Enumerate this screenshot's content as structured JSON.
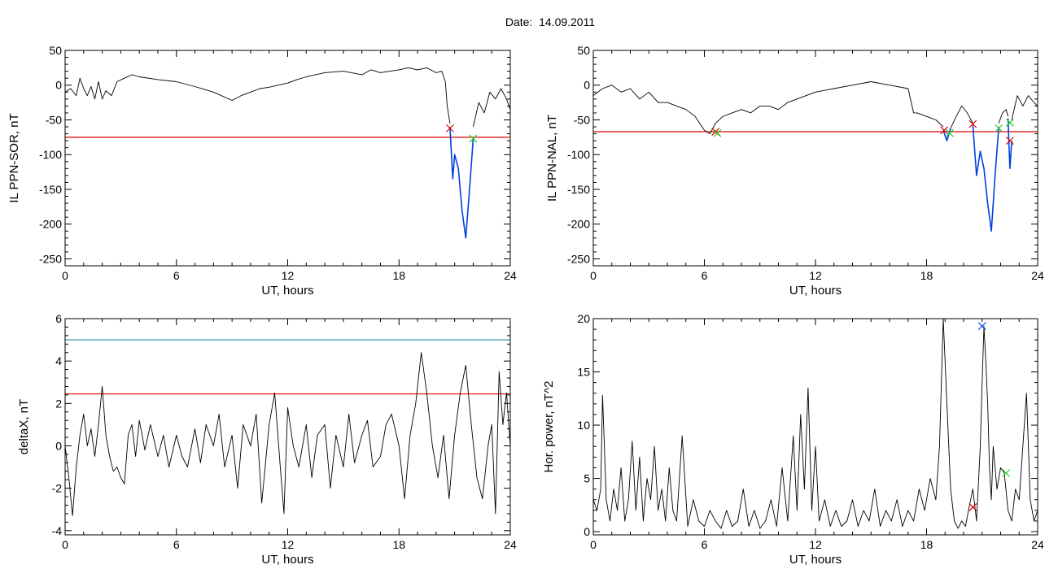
{
  "figure_title": "Date:  14.09.2011",
  "chart_data": [
    {
      "type": "line",
      "xlabel": "UT, hours",
      "ylabel": "IL PPN-SOR, nT",
      "xlim": [
        0,
        24
      ],
      "ylim": [
        -260,
        50
      ],
      "xticks": [
        0,
        6,
        12,
        18,
        24
      ],
      "yticks": [
        50,
        0,
        -50,
        -100,
        -150,
        -200,
        -250
      ],
      "grid": false,
      "threshold_lines": [
        {
          "y": -75,
          "color": "#e00000"
        }
      ],
      "series": [
        {
          "color": "#000000",
          "x": [
            0,
            0.3,
            0.6,
            0.8,
            1.0,
            1.2,
            1.4,
            1.6,
            1.8,
            2.0,
            2.2,
            2.5,
            2.8,
            3.2,
            3.6,
            4,
            5,
            6,
            7,
            8,
            9,
            9.5,
            10,
            10.5,
            11,
            11.5,
            12,
            12.5,
            13,
            14,
            15,
            16,
            16.5,
            17,
            17.5,
            18,
            18.5,
            19,
            19.5,
            20,
            20.3,
            20.5,
            20.6,
            20.75
          ],
          "y": [
            -10,
            -5,
            -15,
            10,
            -5,
            -15,
            -2,
            -20,
            5,
            -20,
            -8,
            -15,
            5,
            10,
            15,
            12,
            8,
            5,
            -2,
            -10,
            -22,
            -15,
            -10,
            -5,
            -3,
            0,
            3,
            8,
            12,
            18,
            20,
            15,
            22,
            18,
            20,
            22,
            25,
            22,
            25,
            18,
            20,
            5,
            -30,
            -55
          ]
        },
        {
          "color": "#0040e0",
          "x": [
            20.75,
            20.9,
            21.0,
            21.2,
            21.4,
            21.6,
            21.8,
            22.0
          ],
          "y": [
            -60,
            -135,
            -100,
            -120,
            -180,
            -220,
            -150,
            -78
          ]
        },
        {
          "color": "#000000",
          "x": [
            22.0,
            22.3,
            22.6,
            22.9,
            23.2,
            23.5,
            23.8,
            24
          ],
          "y": [
            -60,
            -25,
            -40,
            -10,
            -20,
            -5,
            -20,
            -35
          ]
        }
      ],
      "markers": [
        {
          "x": 20.75,
          "y": -62,
          "color": "#e00000"
        },
        {
          "x": 22.0,
          "y": -77,
          "color": "#22cc22"
        }
      ]
    },
    {
      "type": "line",
      "xlabel": "UT, hours",
      "ylabel": "IL PPN-NAL, nT",
      "xlim": [
        0,
        24
      ],
      "ylim": [
        -260,
        50
      ],
      "xticks": [
        0,
        6,
        12,
        18,
        24
      ],
      "yticks": [
        50,
        0,
        -50,
        -100,
        -150,
        -200,
        -250
      ],
      "grid": false,
      "threshold_lines": [
        {
          "y": -67,
          "color": "#e00000"
        }
      ],
      "series": [
        {
          "color": "#000000",
          "x": [
            0,
            0.5,
            1,
            1.5,
            2,
            2.5,
            3,
            3.5,
            4,
            4.5,
            5,
            5.5,
            6,
            6.3,
            6.6,
            7,
            7.5,
            8,
            8.5,
            9,
            9.5,
            10,
            10.5,
            11,
            11.5,
            12,
            13,
            14,
            15,
            16,
            17,
            17.3,
            17.5,
            18,
            18.5,
            18.9
          ],
          "y": [
            -15,
            -5,
            0,
            -10,
            -5,
            -20,
            -10,
            -25,
            -25,
            -30,
            -35,
            -45,
            -65,
            -70,
            -55,
            -45,
            -40,
            -35,
            -40,
            -30,
            -30,
            -35,
            -25,
            -20,
            -15,
            -10,
            -5,
            0,
            5,
            0,
            -5,
            -40,
            -40,
            -45,
            -50,
            -60
          ]
        },
        {
          "color": "#0040e0",
          "x": [
            18.9,
            19.1,
            19.3
          ],
          "y": [
            -65,
            -80,
            -62
          ]
        },
        {
          "color": "#000000",
          "x": [
            19.3,
            19.6,
            19.9,
            20.2,
            20.5
          ],
          "y": [
            -62,
            -45,
            -30,
            -40,
            -55
          ]
        },
        {
          "color": "#0040e0",
          "x": [
            20.5,
            20.7,
            20.9,
            21.1,
            21.3,
            21.5,
            21.7,
            21.9
          ],
          "y": [
            -58,
            -130,
            -95,
            -120,
            -170,
            -210,
            -130,
            -60
          ]
        },
        {
          "color": "#000000",
          "x": [
            21.9,
            22.1,
            22.3,
            22.4
          ],
          "y": [
            -55,
            -40,
            -35,
            -45
          ]
        },
        {
          "color": "#0040e0",
          "x": [
            22.4,
            22.5,
            22.6
          ],
          "y": [
            -48,
            -120,
            -80
          ]
        },
        {
          "color": "#000000",
          "x": [
            22.6,
            22.9,
            23.2,
            23.5,
            23.8,
            24
          ],
          "y": [
            -50,
            -15,
            -30,
            -15,
            -25,
            -30
          ]
        }
      ],
      "markers": [
        {
          "x": 6.6,
          "y": -67,
          "color": "#e00000"
        },
        {
          "x": 6.7,
          "y": -69,
          "color": "#22cc22"
        },
        {
          "x": 18.95,
          "y": -65,
          "color": "#e00000"
        },
        {
          "x": 19.25,
          "y": -69,
          "color": "#22cc22"
        },
        {
          "x": 20.5,
          "y": -56,
          "color": "#e00000"
        },
        {
          "x": 21.9,
          "y": -62,
          "color": "#22cc22"
        },
        {
          "x": 22.5,
          "y": -54,
          "color": "#22cc22"
        },
        {
          "x": 22.5,
          "y": -80,
          "color": "#e00000"
        }
      ]
    },
    {
      "type": "line",
      "xlabel": "UT, hours",
      "ylabel": "deltaX, nT",
      "xlim": [
        0,
        24
      ],
      "ylim": [
        -4.2,
        6
      ],
      "xticks": [
        0,
        6,
        12,
        18,
        24
      ],
      "yticks": [
        6,
        4,
        2,
        0,
        -2,
        -4
      ],
      "grid": false,
      "threshold_lines": [
        {
          "y": 5.0,
          "color": "#1a8ca8"
        },
        {
          "y": 2.45,
          "color": "#e00000"
        }
      ],
      "series": [
        {
          "color": "#000000",
          "x": [
            0,
            0.2,
            0.4,
            0.6,
            0.8,
            1.0,
            1.2,
            1.4,
            1.6,
            1.8,
            2.0,
            2.2,
            2.4,
            2.6,
            2.8,
            3.0,
            3.2,
            3.4,
            3.6,
            3.8,
            4.0,
            4.3,
            4.6,
            5.0,
            5.3,
            5.6,
            6.0,
            6.3,
            6.6,
            7.0,
            7.3,
            7.6,
            8.0,
            8.3,
            8.6,
            9.0,
            9.3,
            9.6,
            10.0,
            10.3,
            10.6,
            11.0,
            11.3,
            11.6,
            11.8,
            12.0,
            12.3,
            12.6,
            13.0,
            13.3,
            13.6,
            14.0,
            14.3,
            14.6,
            15.0,
            15.3,
            15.6,
            16.0,
            16.3,
            16.6,
            17.0,
            17.3,
            17.6,
            18.0,
            18.3,
            18.6,
            18.9,
            19.2,
            19.5,
            19.8,
            20.1,
            20.4,
            20.7,
            21.0,
            21.3,
            21.6,
            21.9,
            22.2,
            22.5,
            22.8,
            23.0,
            23.2,
            23.4,
            23.6,
            23.8,
            24.0
          ],
          "y": [
            0,
            -1.5,
            -3.3,
            -1.0,
            0.5,
            1.5,
            0,
            0.8,
            -0.5,
            1.0,
            2.8,
            0.5,
            -0.5,
            -1.2,
            -1.0,
            -1.5,
            -1.8,
            0.5,
            1.0,
            -0.5,
            1.2,
            -0.2,
            1.0,
            -0.5,
            0.5,
            -1.0,
            0.5,
            -0.5,
            -1.0,
            0.8,
            -0.8,
            1.0,
            0,
            1.5,
            -1.0,
            0.5,
            -2.0,
            1.0,
            0,
            1.5,
            -2.7,
            1.0,
            2.5,
            -1.0,
            -3.2,
            1.8,
            0,
            -1.0,
            1.0,
            -1.5,
            0.5,
            1.0,
            -2.0,
            0.5,
            -1.0,
            1.5,
            -0.8,
            0.5,
            1.2,
            -1.0,
            -0.5,
            1.0,
            1.5,
            0,
            -2.5,
            0.5,
            2.0,
            4.4,
            2.5,
            0,
            -1.5,
            0.5,
            -2.5,
            0.5,
            2.5,
            3.8,
            1.0,
            -1.5,
            -2.5,
            0,
            1.0,
            -3.2,
            3.5,
            1.0,
            2.5,
            0
          ]
        }
      ],
      "markers": []
    },
    {
      "type": "line",
      "xlabel": "UT, hours",
      "ylabel": "Hor. power, nT^2",
      "xlim": [
        0,
        24
      ],
      "ylim": [
        -0.3,
        20
      ],
      "xticks": [
        0,
        6,
        12,
        18,
        24
      ],
      "yticks": [
        20,
        15,
        10,
        5,
        0
      ],
      "grid": false,
      "threshold_lines": [],
      "series": [
        {
          "color": "#000000",
          "x": [
            0,
            0.2,
            0.4,
            0.5,
            0.7,
            0.9,
            1.1,
            1.3,
            1.5,
            1.7,
            1.9,
            2.1,
            2.3,
            2.5,
            2.7,
            2.9,
            3.1,
            3.3,
            3.5,
            3.7,
            3.9,
            4.1,
            4.3,
            4.5,
            4.8,
            5.1,
            5.4,
            5.7,
            6.0,
            6.3,
            6.6,
            6.9,
            7.2,
            7.5,
            7.8,
            8.1,
            8.4,
            8.7,
            9.0,
            9.3,
            9.6,
            9.9,
            10.2,
            10.5,
            10.8,
            11.0,
            11.2,
            11.4,
            11.6,
            11.8,
            12.0,
            12.2,
            12.5,
            12.8,
            13.1,
            13.4,
            13.7,
            14.0,
            14.3,
            14.6,
            14.9,
            15.2,
            15.5,
            15.8,
            16.1,
            16.4,
            16.7,
            17.0,
            17.3,
            17.6,
            17.9,
            18.2,
            18.5,
            18.7,
            18.9,
            19.1,
            19.3,
            19.5,
            19.7,
            19.9,
            20.1,
            20.3,
            20.5,
            20.7,
            20.9,
            21.0,
            21.1,
            21.2,
            21.3,
            21.4,
            21.5,
            21.6,
            21.8,
            22.0,
            22.2,
            22.4,
            22.6,
            22.8,
            23.0,
            23.2,
            23.4,
            23.6,
            23.8,
            24.0
          ],
          "y": [
            3,
            2,
            4,
            12.8,
            3,
            1,
            4,
            2,
            6,
            1,
            3,
            8.5,
            2,
            7,
            1,
            5,
            3,
            8,
            2,
            4,
            1,
            6,
            2,
            1,
            9,
            0.5,
            3,
            1,
            0.5,
            2,
            1,
            0.3,
            2,
            0.5,
            1,
            4,
            0.5,
            2,
            0.3,
            1,
            3,
            0.5,
            6,
            1,
            9,
            2,
            11,
            4,
            13.5,
            2,
            8,
            1,
            3,
            0.5,
            2,
            0.5,
            1,
            3,
            0.5,
            2,
            1,
            4,
            0.5,
            2,
            1,
            3,
            0.5,
            2,
            1,
            4,
            2,
            5,
            3,
            8,
            20,
            12,
            4,
            1,
            0.3,
            1,
            0.5,
            2.3,
            4,
            1,
            8,
            14,
            19.3,
            16,
            12,
            6,
            3,
            8,
            4,
            6,
            5.5,
            2,
            1,
            4,
            3,
            8,
            13,
            3,
            1,
            2
          ]
        }
      ],
      "markers": [
        {
          "x": 20.5,
          "y": 2.3,
          "color": "#e00000"
        },
        {
          "x": 21.0,
          "y": 19.3,
          "color": "#0050e0"
        },
        {
          "x": 22.3,
          "y": 5.5,
          "color": "#22cc22"
        }
      ]
    }
  ]
}
